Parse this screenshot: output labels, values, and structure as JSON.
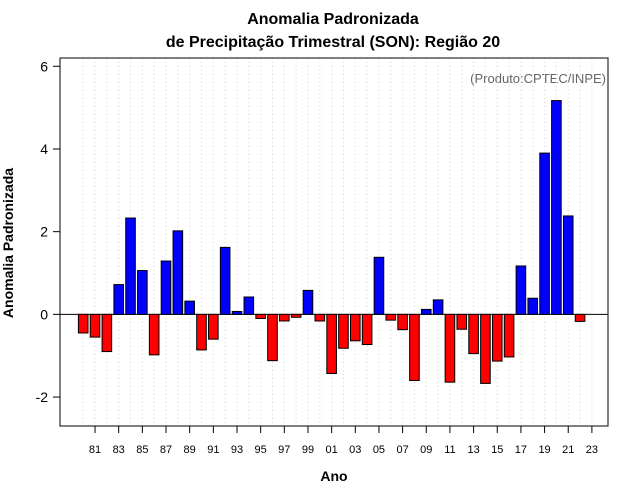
{
  "chart_data": {
    "type": "bar",
    "title": "Anomalia Padronizada",
    "subtitle": "de Precipitação Trimestral (SON): Região 20",
    "xlabel": "Ano",
    "ylabel": "Anomalia Padronizada",
    "credit": "(Produto:CPTEC/INPE)",
    "ylim": [
      -2.7,
      6.2
    ],
    "yticks": [
      -2,
      0,
      2,
      4,
      6
    ],
    "ytick_labels": [
      "-2",
      "0",
      "2",
      "4",
      "6"
    ],
    "xtick_labels": [
      "81",
      "83",
      "85",
      "87",
      "89",
      "91",
      "93",
      "95",
      "97",
      "99",
      "01",
      "03",
      "05",
      "07",
      "09",
      "11",
      "13",
      "15",
      "17",
      "19",
      "21",
      "23"
    ],
    "years": [
      1980,
      1981,
      1982,
      1983,
      1984,
      1985,
      1986,
      1987,
      1988,
      1989,
      1990,
      1991,
      1992,
      1993,
      1994,
      1995,
      1996,
      1997,
      1998,
      1999,
      2000,
      2001,
      2002,
      2003,
      2004,
      2005,
      2006,
      2007,
      2008,
      2009,
      2010,
      2011,
      2012,
      2013,
      2014,
      2015,
      2016,
      2017,
      2018,
      2019,
      2020,
      2021,
      2022,
      2023
    ],
    "values": [
      -0.45,
      -0.55,
      -0.9,
      0.72,
      2.33,
      1.06,
      -0.98,
      1.29,
      2.02,
      0.32,
      -0.86,
      -0.6,
      1.62,
      0.07,
      0.42,
      -0.1,
      -1.12,
      -0.16,
      -0.07,
      0.58,
      -0.16,
      -1.43,
      -0.82,
      -0.64,
      -0.73,
      1.38,
      -0.14,
      -0.37,
      -1.6,
      0.12,
      0.35,
      -1.64,
      -0.36,
      -0.95,
      -1.67,
      -1.13,
      -1.03,
      1.17,
      0.39,
      3.9,
      5.17,
      2.38,
      -0.17,
      null
    ],
    "colors": {
      "positive": "#0000ff",
      "negative": "#ff0000",
      "grid": "#d3d3d3",
      "frame": "#000000"
    },
    "grid": true,
    "legend": "none"
  }
}
